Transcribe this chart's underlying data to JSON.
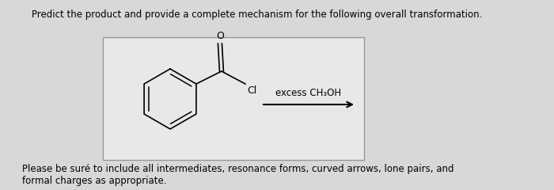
{
  "title_text": "Predict the product and provide a complete mechanism for the following overall transformation.",
  "footer_line1": "Please be suré to include all intermediates, resonance forms, curved arrows, lone pairs, and",
  "footer_line2": "formal charges as appropriate.",
  "reagent_text": "excess CH₃OH",
  "bg_color": "#d8d8d8",
  "box_bg": "#e8e8e8",
  "box_border": "#999999",
  "title_fontsize": 8.5,
  "footer_fontsize": 8.5,
  "reagent_fontsize": 8.5
}
